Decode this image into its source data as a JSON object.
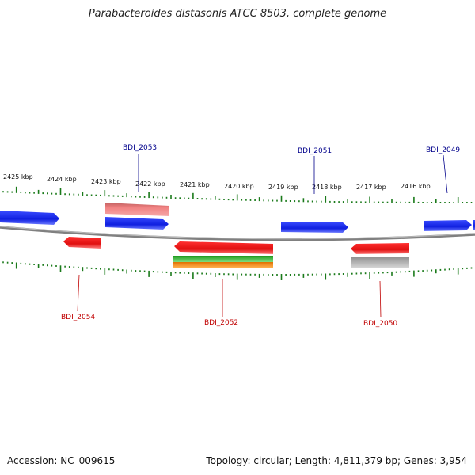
{
  "title": "Parabacteroides distasonis ATCC 8503, complete genome",
  "accession": "Accession: NC_009615",
  "summary": "Topology: circular; Length: 4,811,379 bp; Genes: 3,954",
  "colors": {
    "forward_gene": "#1020e0",
    "reverse_gene": "#e01010",
    "rna_pink": "#f08080",
    "backbone": "#808080",
    "ticks": "#1a7a1a",
    "forward_label": "#00008b",
    "reverse_label": "#c00000",
    "green_feature": "#33bb33",
    "orange_feature": "#ff8800",
    "gray_feature": "#b8b8b8"
  },
  "scale": {
    "labels": [
      "2425 kbp",
      "2424 kbp",
      "2423 kbp",
      "2422 kbp",
      "2421 kbp",
      "2420 kbp",
      "2419 kbp",
      "2418 kbp",
      "2417 kbp",
      "2416 kbp"
    ]
  },
  "genes": [
    {
      "id": "BDI_2053",
      "strand": "forward"
    },
    {
      "id": "BDI_2051",
      "strand": "forward"
    },
    {
      "id": "BDI_2049",
      "strand": "forward"
    },
    {
      "id": "BDI_2054",
      "strand": "reverse"
    },
    {
      "id": "BDI_2052",
      "strand": "reverse"
    },
    {
      "id": "BDI_2050",
      "strand": "reverse"
    }
  ]
}
